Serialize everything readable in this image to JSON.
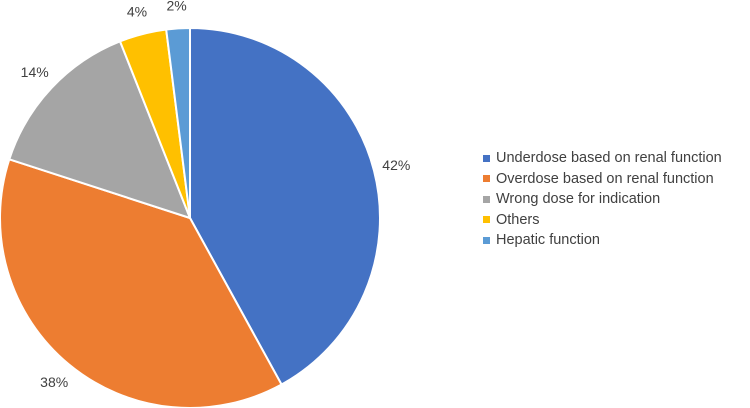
{
  "chart_data": {
    "type": "pie",
    "title": "",
    "legend_position": "right",
    "slices": [
      {
        "label": "Underdose based on renal function",
        "value": 42,
        "value_label": "42%",
        "color": "#4472C4"
      },
      {
        "label": "Overdose based on renal function",
        "value": 38,
        "value_label": "38%",
        "color": "#ED7D31"
      },
      {
        "label": "Wrong dose for indication",
        "value": 14,
        "value_label": "14%",
        "color": "#A5A5A5"
      },
      {
        "label": "Others",
        "value": 4,
        "value_label": "4%",
        "color": "#FFC000"
      },
      {
        "label": "Hepatic function",
        "value": 2,
        "value_label": "2%",
        "color": "#5B9BD5"
      }
    ]
  }
}
